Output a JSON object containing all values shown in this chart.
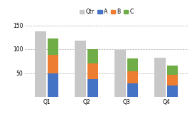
{
  "categories": [
    "Q1",
    "Q2",
    "Q3",
    "Q4"
  ],
  "qtr_values": [
    138,
    118,
    99,
    82
  ],
  "A_values": [
    50,
    38,
    29,
    24
  ],
  "B_values": [
    38,
    32,
    25,
    22
  ],
  "C_values": [
    35,
    30,
    26,
    20
  ],
  "qtr_color": "#c8c8c8",
  "A_color": "#4472c4",
  "B_color": "#ed7d31",
  "C_color": "#70ad47",
  "legend_labels": [
    "Qtr",
    "A",
    "B",
    "C"
  ],
  "ylim": [
    0,
    160
  ],
  "yticks": [
    50,
    100,
    150
  ],
  "bg_color": "#ffffff",
  "grid_color": "#b0b0b0",
  "bar_width": 0.28,
  "legend_fontsize": 5.5,
  "tick_fontsize": 5.5
}
